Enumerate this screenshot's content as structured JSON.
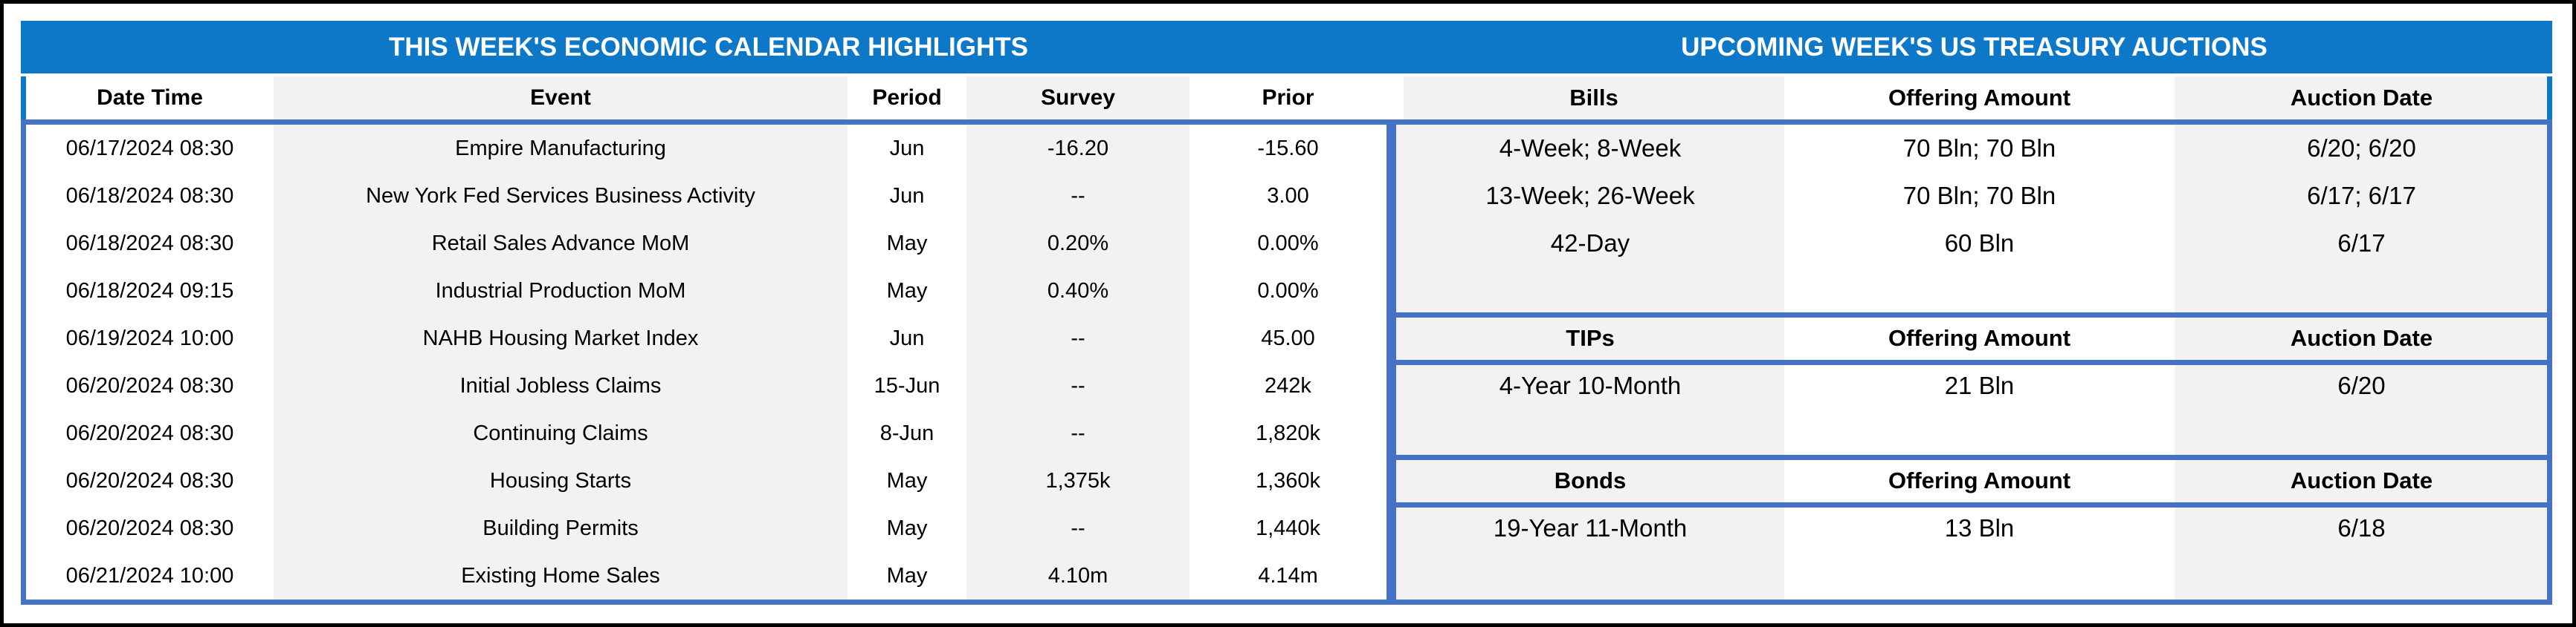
{
  "calendar": {
    "title": "THIS WEEK'S ECONOMIC CALENDAR HIGHLIGHTS",
    "columns": [
      "Date Time",
      "Event",
      "Period",
      "Survey",
      "Prior"
    ],
    "rows": [
      [
        "06/17/2024 08:30",
        "Empire Manufacturing",
        "Jun",
        "-16.20",
        "-15.60"
      ],
      [
        "06/18/2024 08:30",
        "New York Fed Services Business Activity",
        "Jun",
        "--",
        "3.00"
      ],
      [
        "06/18/2024 08:30",
        "Retail Sales Advance MoM",
        "May",
        "0.20%",
        "0.00%"
      ],
      [
        "06/18/2024 09:15",
        "Industrial Production MoM",
        "May",
        "0.40%",
        "0.00%"
      ],
      [
        "06/19/2024 10:00",
        "NAHB Housing Market Index",
        "Jun",
        "--",
        "45.00"
      ],
      [
        "06/20/2024 08:30",
        "Initial Jobless Claims",
        "15-Jun",
        "--",
        "242k"
      ],
      [
        "06/20/2024 08:30",
        "Continuing Claims",
        "8-Jun",
        "--",
        "1,820k"
      ],
      [
        "06/20/2024 08:30",
        "Housing Starts",
        "May",
        "1,375k",
        "1,360k"
      ],
      [
        "06/20/2024 08:30",
        "Building Permits",
        "May",
        "--",
        "1,440k"
      ],
      [
        "06/21/2024 10:00",
        "Existing Home Sales",
        "May",
        "4.10m",
        "4.14m"
      ]
    ]
  },
  "auctions": {
    "title": "UPCOMING WEEK'S US TREASURY AUCTIONS",
    "sections": [
      {
        "name": "Bills",
        "columns": [
          "Bills",
          "Offering Amount",
          "Auction Date"
        ],
        "rows": [
          [
            "4-Week; 8-Week",
            "70 Bln; 70 Bln",
            "6/20; 6/20"
          ],
          [
            "13-Week; 26-Week",
            "70 Bln; 70 Bln",
            "6/17; 6/17"
          ],
          [
            "42-Day",
            "60 Bln",
            "6/17"
          ]
        ]
      },
      {
        "name": "TIPs",
        "columns": [
          "TIPs",
          "Offering Amount",
          "Auction Date"
        ],
        "rows": [
          [
            "4-Year 10-Month",
            "21 Bln",
            "6/20"
          ]
        ]
      },
      {
        "name": "Bonds",
        "columns": [
          "Bonds",
          "Offering Amount",
          "Auction Date"
        ],
        "rows": [
          [
            "19-Year 11-Month",
            "13 Bln",
            "6/18"
          ]
        ]
      }
    ]
  },
  "colors": {
    "title_bar_blue": "#0d78c8",
    "grid_blue": "#4472C4",
    "band_gray": "#F2F2F2",
    "frame_black": "#000000"
  }
}
